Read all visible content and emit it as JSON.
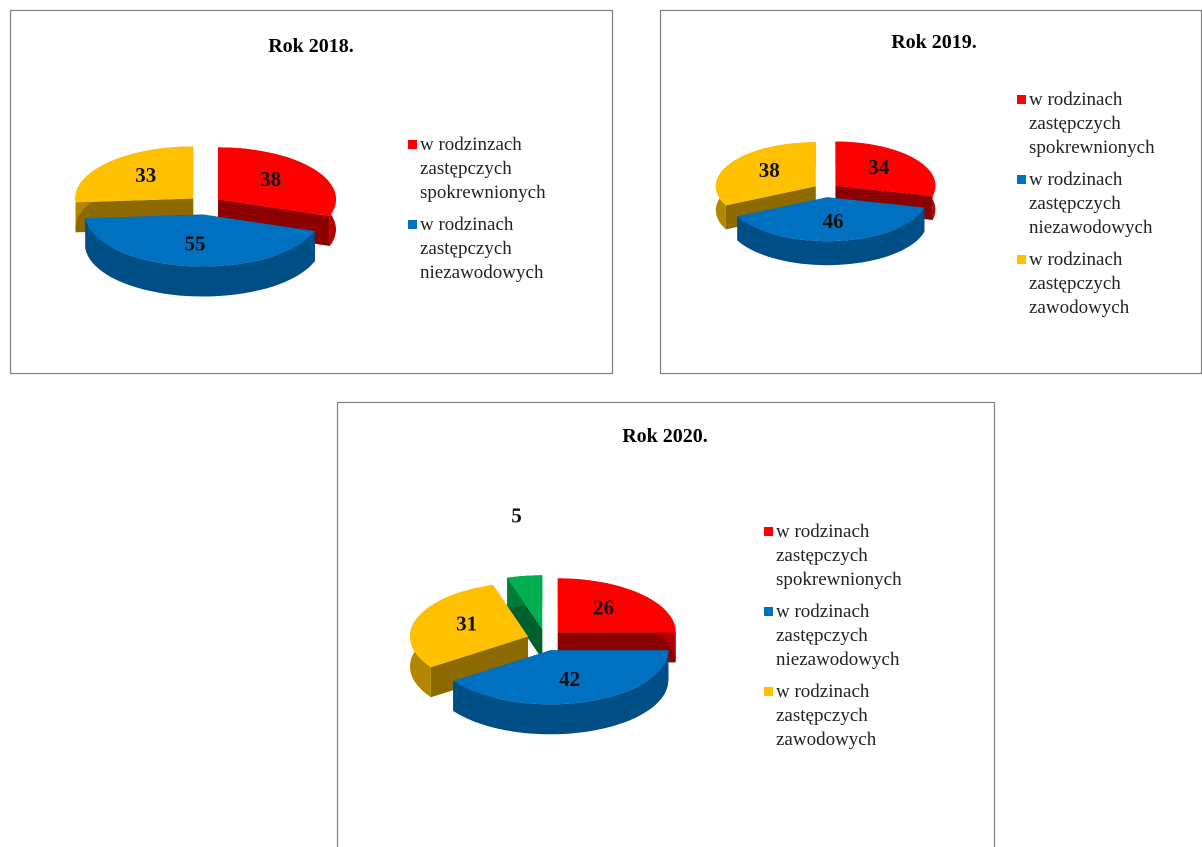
{
  "chart_data": [
    {
      "type": "pie",
      "title": "Rok 2018.",
      "categories": [
        "w rodzinzach zastępczych spokrewnionych",
        "w rodzinach zastępczych niezawodowych",
        null
      ],
      "values": [
        38,
        55,
        33
      ],
      "colors": [
        "#ff0000",
        "#0070c0",
        "#ffc000"
      ]
    },
    {
      "type": "pie",
      "title": "Rok 2019.",
      "categories": [
        "w rodzinach zastępczych spokrewnionych",
        "w rodzinach zastępczych niezawodowych",
        "w rodzinach zastępczych zawodowych"
      ],
      "values": [
        34,
        46,
        38
      ],
      "colors": [
        "#ff0000",
        "#0070c0",
        "#ffc000"
      ]
    },
    {
      "type": "pie",
      "title": "Rok 2020.",
      "categories": [
        "w rodzinach zastępczych spokrewnionych",
        "w rodzinach zastępczych niezawodowych",
        "w rodzinach zastępczych zawodowych",
        null
      ],
      "values": [
        26,
        42,
        31,
        5
      ],
      "colors": [
        "#ff0000",
        "#0070c0",
        "#ffc000",
        "#00b050"
      ]
    }
  ]
}
